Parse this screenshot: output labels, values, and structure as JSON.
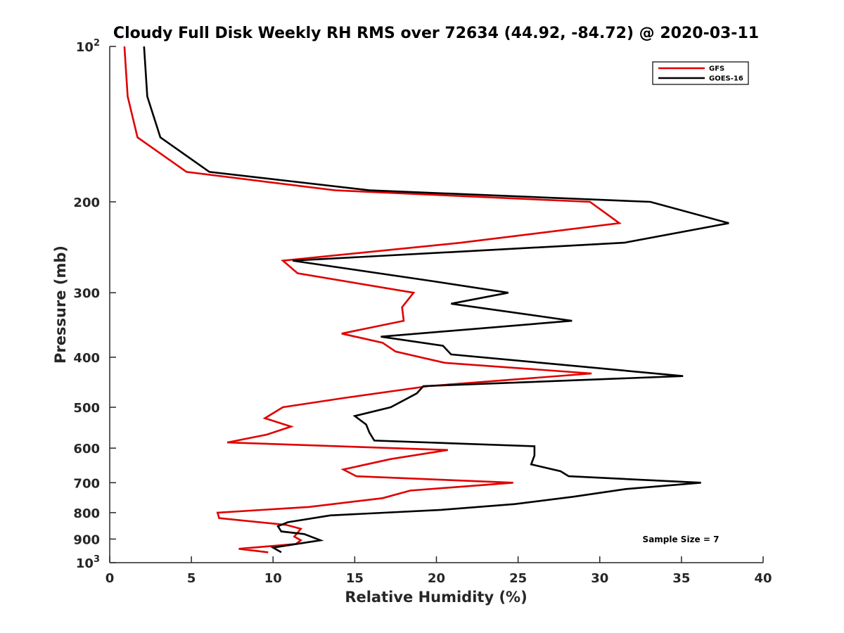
{
  "chart_data": {
    "type": "line",
    "title": "Cloudy Full Disk Weekly RH RMS over 72634 (44.92, -84.72) @ 2020-03-11",
    "xlabel": "Relative Humidity (%)",
    "ylabel": "Pressure (mb)",
    "xlim": [
      0,
      40
    ],
    "ylim": [
      100,
      1000
    ],
    "y_scale": "log",
    "y_reversed": true,
    "grid": false,
    "legend_position": "top-right",
    "x_ticks": [
      {
        "value": 0,
        "label": "0"
      },
      {
        "value": 5,
        "label": "5"
      },
      {
        "value": 10,
        "label": "10"
      },
      {
        "value": 15,
        "label": "15"
      },
      {
        "value": 20,
        "label": "20"
      },
      {
        "value": 25,
        "label": "25"
      },
      {
        "value": 30,
        "label": "30"
      },
      {
        "value": 35,
        "label": "35"
      },
      {
        "value": 40,
        "label": "40"
      }
    ],
    "y_ticks": [
      {
        "value": 100,
        "label": "10",
        "sup": "2"
      },
      {
        "value": 200,
        "label": "200",
        "sup": ""
      },
      {
        "value": 300,
        "label": "300",
        "sup": ""
      },
      {
        "value": 400,
        "label": "400",
        "sup": ""
      },
      {
        "value": 500,
        "label": "500",
        "sup": ""
      },
      {
        "value": 600,
        "label": "600",
        "sup": ""
      },
      {
        "value": 700,
        "label": "700",
        "sup": ""
      },
      {
        "value": 800,
        "label": "800",
        "sup": ""
      },
      {
        "value": 900,
        "label": "900",
        "sup": ""
      },
      {
        "value": 1000,
        "label": "10",
        "sup": "3"
      }
    ],
    "series": [
      {
        "name": "GFS",
        "color": "#e00000",
        "points": [
          [
            0.9,
            100
          ],
          [
            1.1,
            125
          ],
          [
            1.7,
            150
          ],
          [
            4.7,
            175
          ],
          [
            13.8,
            190
          ],
          [
            29.4,
            200
          ],
          [
            31.2,
            220
          ],
          [
            21.5,
            240
          ],
          [
            10.6,
            260
          ],
          [
            11.5,
            275
          ],
          [
            18.6,
            300
          ],
          [
            17.9,
            320
          ],
          [
            18.0,
            340
          ],
          [
            14.2,
            360
          ],
          [
            16.7,
            375
          ],
          [
            17.5,
            390
          ],
          [
            20.5,
            410
          ],
          [
            29.5,
            430
          ],
          [
            19.5,
            455
          ],
          [
            14.3,
            480
          ],
          [
            10.6,
            500
          ],
          [
            9.5,
            525
          ],
          [
            11.1,
            545
          ],
          [
            9.6,
            565
          ],
          [
            7.2,
            585
          ],
          [
            20.7,
            605
          ],
          [
            17.2,
            630
          ],
          [
            14.3,
            660
          ],
          [
            15.1,
            680
          ],
          [
            24.7,
            700
          ],
          [
            18.4,
            725
          ],
          [
            16.7,
            750
          ],
          [
            12.2,
            780
          ],
          [
            6.6,
            800
          ],
          [
            6.7,
            820
          ],
          [
            10.8,
            845
          ],
          [
            11.7,
            860
          ],
          [
            11.5,
            875
          ],
          [
            11.3,
            890
          ],
          [
            11.7,
            905
          ],
          [
            11.4,
            920
          ],
          [
            7.9,
            940
          ],
          [
            9.7,
            955
          ]
        ]
      },
      {
        "name": "GOES-16",
        "color": "#000000",
        "points": [
          [
            2.1,
            100
          ],
          [
            2.3,
            125
          ],
          [
            3.1,
            150
          ],
          [
            6.1,
            175
          ],
          [
            15.9,
            190
          ],
          [
            33.1,
            200
          ],
          [
            37.9,
            220
          ],
          [
            31.5,
            240
          ],
          [
            11.2,
            260
          ],
          [
            19.8,
            285
          ],
          [
            24.4,
            300
          ],
          [
            20.9,
            315
          ],
          [
            28.3,
            340
          ],
          [
            16.6,
            365
          ],
          [
            20.4,
            380
          ],
          [
            20.9,
            395
          ],
          [
            26.4,
            410
          ],
          [
            35.1,
            435
          ],
          [
            19.2,
            455
          ],
          [
            18.8,
            470
          ],
          [
            17.2,
            500
          ],
          [
            15.0,
            520
          ],
          [
            15.7,
            540
          ],
          [
            15.9,
            560
          ],
          [
            16.2,
            580
          ],
          [
            26.0,
            595
          ],
          [
            26.0,
            620
          ],
          [
            25.8,
            645
          ],
          [
            27.6,
            665
          ],
          [
            28.1,
            680
          ],
          [
            36.2,
            700
          ],
          [
            31.6,
            720
          ],
          [
            28.4,
            745
          ],
          [
            24.8,
            770
          ],
          [
            20.3,
            790
          ],
          [
            13.5,
            810
          ],
          [
            10.9,
            835
          ],
          [
            10.3,
            850
          ],
          [
            10.5,
            870
          ],
          [
            11.9,
            880
          ],
          [
            12.9,
            905
          ],
          [
            10.0,
            935
          ],
          [
            10.5,
            955
          ]
        ]
      }
    ],
    "annotation": "Sample Size = 7"
  }
}
